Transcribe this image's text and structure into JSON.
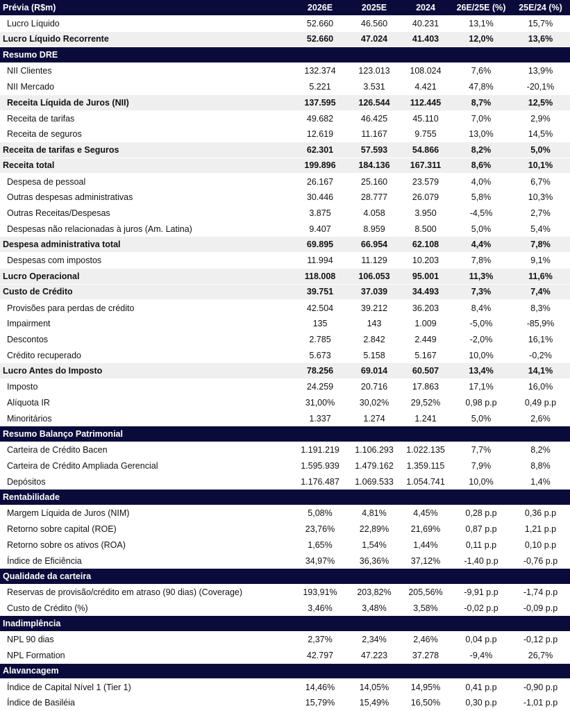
{
  "colors": {
    "header_bg": "#0b0b3b",
    "total_bg": "#efefef"
  },
  "header": {
    "label": "Prévia (R$m)",
    "columns": [
      "2026E",
      "2025E",
      "2024",
      "26E/25E (%)",
      "25E/24 (%)"
    ]
  },
  "rows": [
    {
      "type": "item",
      "label": "Lucro Líquido",
      "values": [
        "52.660",
        "46.560",
        "40.231",
        "13,1%",
        "15,7%"
      ]
    },
    {
      "type": "total",
      "label": "Lucro Líquido Recorrente",
      "values": [
        "52.660",
        "47.024",
        "41.403",
        "12,0%",
        "13,6%"
      ]
    },
    {
      "type": "section",
      "label": "Resumo DRE",
      "values": []
    },
    {
      "type": "item",
      "label": "NII Clientes",
      "values": [
        "132.374",
        "123.013",
        "108.024",
        "7,6%",
        "13,9%"
      ]
    },
    {
      "type": "item",
      "label": "NII Mercado",
      "values": [
        "5.221",
        "3.531",
        "4.421",
        "47,8%",
        "-20,1%"
      ]
    },
    {
      "type": "subtotal",
      "label": "Receita Líquida de Juros (NII)",
      "values": [
        "137.595",
        "126.544",
        "112.445",
        "8,7%",
        "12,5%"
      ]
    },
    {
      "type": "item",
      "label": "Receita de tarifas",
      "values": [
        "49.682",
        "46.425",
        "45.110",
        "7,0%",
        "2,9%"
      ]
    },
    {
      "type": "item",
      "label": "Receita de seguros",
      "values": [
        "12.619",
        "11.167",
        "9.755",
        "13,0%",
        "14,5%"
      ]
    },
    {
      "type": "total",
      "label": "Receita de tarifas e Seguros",
      "values": [
        "62.301",
        "57.593",
        "54.866",
        "8,2%",
        "5,0%"
      ]
    },
    {
      "type": "total",
      "label": "Receita total",
      "values": [
        "199.896",
        "184.136",
        "167.311",
        "8,6%",
        "10,1%"
      ]
    },
    {
      "type": "item",
      "label": "Despesa de pessoal",
      "values": [
        "26.167",
        "25.160",
        "23.579",
        "4,0%",
        "6,7%"
      ]
    },
    {
      "type": "item",
      "label": "Outras despesas administrativas",
      "values": [
        "30.446",
        "28.777",
        "26.079",
        "5,8%",
        "10,3%"
      ]
    },
    {
      "type": "item",
      "label": "Outras Receitas/Despesas",
      "values": [
        "3.875",
        "4.058",
        "3.950",
        "-4,5%",
        "2,7%"
      ]
    },
    {
      "type": "item",
      "label": "Despesas não relacionadas à juros (Am. Latina)",
      "values": [
        "9.407",
        "8.959",
        "8.500",
        "5,0%",
        "5,4%"
      ]
    },
    {
      "type": "total",
      "label": "Despesa administrativa total",
      "values": [
        "69.895",
        "66.954",
        "62.108",
        "4,4%",
        "7,8%"
      ]
    },
    {
      "type": "item",
      "label": "Despesas com impostos",
      "values": [
        "11.994",
        "11.129",
        "10.203",
        "7,8%",
        "9,1%"
      ]
    },
    {
      "type": "total",
      "label": "Lucro Operacional",
      "values": [
        "118.008",
        "106.053",
        "95.001",
        "11,3%",
        "11,6%"
      ]
    },
    {
      "type": "total",
      "label": "Custo de Crédito",
      "values": [
        "39.751",
        "37.039",
        "34.493",
        "7,3%",
        "7,4%"
      ]
    },
    {
      "type": "item",
      "label": "Provisões para perdas de crédito",
      "values": [
        "42.504",
        "39.212",
        "36.203",
        "8,4%",
        "8,3%"
      ]
    },
    {
      "type": "item",
      "label": "Impairment",
      "values": [
        "135",
        "143",
        "1.009",
        "-5,0%",
        "-85,9%"
      ]
    },
    {
      "type": "item",
      "label": "Descontos",
      "values": [
        "2.785",
        "2.842",
        "2.449",
        "-2,0%",
        "16,1%"
      ]
    },
    {
      "type": "item",
      "label": "Crédito recuperado",
      "values": [
        "5.673",
        "5.158",
        "5.167",
        "10,0%",
        "-0,2%"
      ]
    },
    {
      "type": "total",
      "label": "Lucro Antes do Imposto",
      "values": [
        "78.256",
        "69.014",
        "60.507",
        "13,4%",
        "14,1%"
      ]
    },
    {
      "type": "item",
      "label": "Imposto",
      "values": [
        "24.259",
        "20.716",
        "17.863",
        "17,1%",
        "16,0%"
      ]
    },
    {
      "type": "item",
      "label": "Alíquota IR",
      "values": [
        "31,00%",
        "30,02%",
        "29,52%",
        "0,98 p.p",
        "0,49 p.p"
      ]
    },
    {
      "type": "item",
      "label": "Minoritários",
      "values": [
        "1.337",
        "1.274",
        "1.241",
        "5,0%",
        "2,6%"
      ]
    },
    {
      "type": "section",
      "label": "Resumo Balanço Patrimonial",
      "values": []
    },
    {
      "type": "item",
      "label": "Carteira de Crédito Bacen",
      "values": [
        "1.191.219",
        "1.106.293",
        "1.022.135",
        "7,7%",
        "8,2%"
      ]
    },
    {
      "type": "item",
      "label": "Carteira de Crédito Ampliada Gerencial",
      "values": [
        "1.595.939",
        "1.479.162",
        "1.359.115",
        "7,9%",
        "8,8%"
      ]
    },
    {
      "type": "item",
      "label": "Depósitos",
      "values": [
        "1.176.487",
        "1.069.533",
        "1.054.741",
        "10,0%",
        "1,4%"
      ]
    },
    {
      "type": "section",
      "label": "Rentabilidade",
      "values": []
    },
    {
      "type": "item",
      "label": "Margem Líquida de Juros (NIM)",
      "values": [
        "5,08%",
        "4,81%",
        "4,45%",
        "0,28 p.p",
        "0,36 p.p"
      ]
    },
    {
      "type": "item",
      "label": "Retorno sobre capital (ROE)",
      "values": [
        "23,76%",
        "22,89%",
        "21,69%",
        "0,87 p.p",
        "1,21 p.p"
      ]
    },
    {
      "type": "item",
      "label": "Retorno sobre os ativos (ROA)",
      "values": [
        "1,65%",
        "1,54%",
        "1,44%",
        "0,11 p.p",
        "0,10 p.p"
      ]
    },
    {
      "type": "item",
      "label": "Índice de Eficiência",
      "values": [
        "34,97%",
        "36,36%",
        "37,12%",
        "-1,40 p.p",
        "-0,76 p.p"
      ]
    },
    {
      "type": "section",
      "label": "Qualidade da carteira",
      "values": []
    },
    {
      "type": "item",
      "label": "Reservas de provisão/crédito em atraso (90 dias) (Coverage)",
      "values": [
        "193,91%",
        "203,82%",
        "205,56%",
        "-9,91 p.p",
        "-1,74 p.p"
      ]
    },
    {
      "type": "item",
      "label": "Custo de Crédito (%)",
      "values": [
        "3,46%",
        "3,48%",
        "3,58%",
        "-0,02 p.p",
        "-0,09 p.p"
      ]
    },
    {
      "type": "section",
      "label": "Inadimplência",
      "values": []
    },
    {
      "type": "item",
      "label": "NPL 90 dias",
      "values": [
        "2,37%",
        "2,34%",
        "2,46%",
        "0,04 p.p",
        "-0,12 p.p"
      ]
    },
    {
      "type": "item",
      "label": "NPL Formation",
      "values": [
        "42.797",
        "47.223",
        "37.278",
        "-9,4%",
        "26,7%"
      ]
    },
    {
      "type": "section",
      "label": "Alavancagem",
      "values": []
    },
    {
      "type": "item",
      "label": "Índice de Capital Nível 1 (Tier 1)",
      "values": [
        "14,46%",
        "14,05%",
        "14,95%",
        "0,41 p.p",
        "-0,90 p.p"
      ]
    },
    {
      "type": "item",
      "label": "Índice de Basiléia",
      "values": [
        "15,79%",
        "15,49%",
        "16,50%",
        "0,30 p.p",
        "-1,01 p.p"
      ]
    }
  ]
}
